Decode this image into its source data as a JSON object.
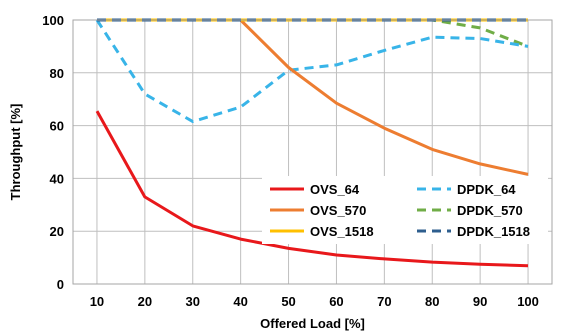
{
  "chart_data": {
    "type": "line",
    "xlabel": "Offered Load [%]",
    "ylabel": "Throughput [%]",
    "xlim": [
      5,
      105
    ],
    "ylim": [
      0,
      100
    ],
    "x_ticks": [
      10,
      20,
      30,
      40,
      50,
      60,
      70,
      80,
      90,
      100
    ],
    "y_ticks": [
      0,
      20,
      40,
      60,
      80,
      100
    ],
    "grid": true,
    "legend_position": "bottom-right",
    "x": [
      10,
      20,
      30,
      40,
      50,
      60,
      70,
      80,
      90,
      100
    ],
    "series": [
      {
        "name": "OVS_64",
        "color": "#e8181b",
        "dash": "solid",
        "values": [
          65.5,
          33,
          22,
          17,
          13.5,
          11,
          9.5,
          8.3,
          7.5,
          6.9
        ]
      },
      {
        "name": "OVS_570",
        "color": "#ed7d31",
        "dash": "solid",
        "values": [
          100,
          100,
          100,
          100,
          82,
          68.5,
          59,
          51,
          45.5,
          41.5
        ]
      },
      {
        "name": "OVS_1518",
        "color": "#ffc000",
        "dash": "solid",
        "values": [
          100,
          100,
          100,
          100,
          100,
          100,
          100,
          100,
          100,
          100
        ]
      },
      {
        "name": "DPDK_64",
        "color": "#38b4e8",
        "dash": "dashed",
        "values": [
          100,
          72,
          61.5,
          67,
          81,
          83,
          88.5,
          93.5,
          93,
          90
        ]
      },
      {
        "name": "DPDK_570",
        "color": "#70ad47",
        "dash": "dashed",
        "values": [
          100,
          100,
          100,
          100,
          100,
          100,
          100,
          100,
          97,
          90
        ]
      },
      {
        "name": "DPDK_1518",
        "color": "#2e5e8e",
        "dash": "dashed",
        "values": [
          100,
          100,
          100,
          100,
          100,
          100,
          100,
          100,
          100,
          100
        ]
      }
    ]
  }
}
